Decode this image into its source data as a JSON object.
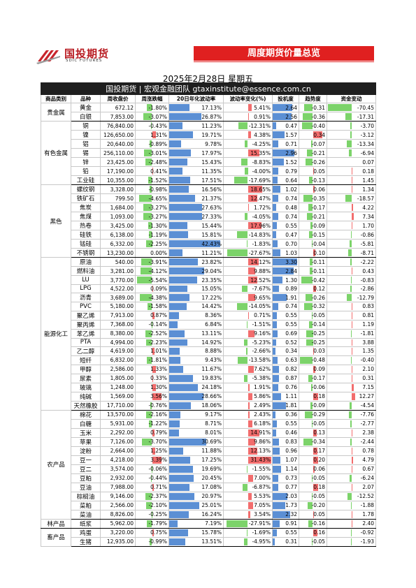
{
  "logo": {
    "cn": "国投期货",
    "en": "SDIC FUTURES"
  },
  "banner": "周度期货价量总览",
  "date": "2025年2月28日 星期五",
  "header_line": "国投期货 | 宏观金融团队 gtaxinstitute@essence.com.cn",
  "columns": [
    "商品类别",
    "品种",
    "周收盘价",
    "周涨跌幅",
    "20日年化波动率",
    "波动率变化(%)",
    "投机度",
    "趋势度",
    "资金变动"
  ],
  "colors": {
    "positive": "#f26d6d",
    "negative": "#7cd36a",
    "volume": "#5b8fd4",
    "brand": "#e02020"
  },
  "groups": [
    {
      "category": "贵金属",
      "rows": [
        [
          "黄金",
          "672.12",
          "-1.80%",
          "17.13%",
          "5.41%",
          "2.64",
          "-0.31",
          "-70.45"
        ],
        [
          "白银",
          "7,853.00",
          "-3.07%",
          "26.87%",
          "0.91%",
          "2.56",
          "-0.36",
          "-17.31"
        ]
      ]
    },
    {
      "category": "有色金属",
      "rows": [
        [
          "铜",
          "76,840.00",
          "-0.43%",
          "11.23%",
          "-12.31%",
          "0.47",
          "-0.40",
          "-3.70"
        ],
        [
          "镍",
          "126,650.00",
          "1.31%",
          "19.71%",
          "4.38%",
          "1.57",
          "0.34",
          "-3.12"
        ],
        [
          "铝",
          "20,640.00",
          "-0.89%",
          "9.78%",
          "-4.25%",
          "0.71",
          "-0.07",
          "-13.34"
        ],
        [
          "锡",
          "256,110.00",
          "-3.01%",
          "17.97%",
          "15.35%",
          "2.96",
          "-0.21",
          "-6.94"
        ],
        [
          "锌",
          "23,425.00",
          "-2.48%",
          "15.43%",
          "-8.83%",
          "1.52",
          "-0.26",
          "0.07"
        ],
        [
          "铅",
          "17,190.00",
          "0.41%",
          "11.35%",
          "-4.00%",
          "0.79",
          "0.05",
          "0.18"
        ],
        [
          "工业硅",
          "10,355.00",
          "-1.52%",
          "17.51%",
          "-17.69%",
          "0.64",
          "-0.13",
          "1.45"
        ]
      ]
    },
    {
      "category": "黑色",
      "rows": [
        [
          "螺纹钢",
          "3,328.00",
          "-0.98%",
          "16.56%",
          "18.65%",
          "1.02",
          "0.06",
          "1.34"
        ],
        [
          "铁矿石",
          "799.50",
          "-4.65%",
          "21.37%",
          "12.47%",
          "0.74",
          "-0.35",
          "-18.57"
        ],
        [
          "焦炭",
          "1,684.00",
          "-3.27%",
          "27.63%",
          "1.72%",
          "0.48",
          "-0.17",
          "4.22"
        ],
        [
          "焦煤",
          "1,093.00",
          "-3.27%",
          "27.33%",
          "-4.05%",
          "0.74",
          "-0.21",
          "7.34"
        ],
        [
          "热卷",
          "3,425.00",
          "-1.30%",
          "15.44%",
          "17.96%",
          "0.55",
          "-0.09",
          "1.70"
        ],
        [
          "硅铁",
          "6,138.00",
          "-1.19%",
          "15.81%",
          "-14.83%",
          "0.47",
          "-0.15",
          "-0.86"
        ],
        [
          "锰硅",
          "6,332.00",
          "-2.25%",
          "42.43%",
          "-1.83%",
          "0.70",
          "-0.04",
          "-5.81"
        ],
        [
          "不锈钢",
          "13,230.00",
          "0.00%",
          "11.21%",
          "-27.67%",
          "1.03",
          "0.10",
          "-8.71"
        ]
      ]
    },
    {
      "category": "能源化工",
      "rows": [
        [
          "原油",
          "540.00",
          "-3.91%",
          "23.82%",
          "14.12%",
          "3.30",
          "-0.11",
          "-2.22"
        ],
        [
          "燃料油",
          "3,281.00",
          "-4.12%",
          "29.04%",
          "9.88%",
          "2.84",
          "-0.11",
          "0.43"
        ],
        [
          "LU",
          "3,770.00",
          "-5.54%",
          "23.35%",
          "12.52%",
          "1.30",
          "-0.42",
          "-0.83"
        ],
        [
          "LPG",
          "4,522.00",
          "0.09%",
          "15.05%",
          "-7.67%",
          "0.89",
          "0.12",
          "-2.86"
        ],
        [
          "沥青",
          "3,689.00",
          "-4.38%",
          "17.22%",
          "9.65%",
          "1.91",
          "-0.26",
          "-12.79"
        ],
        [
          "PVC",
          "5,180.00",
          "-1.58%",
          "14.42%",
          "-14.05%",
          "0.74",
          "-0.32",
          "0.83"
        ],
        [
          "聚乙烯",
          "7,913.00",
          "0.87%",
          "8.36%",
          "0.71%",
          "0.55",
          "-0.05",
          "0.81"
        ],
        [
          "聚丙烯",
          "7,368.00",
          "-0.14%",
          "6.84%",
          "-1.51%",
          "0.55",
          "-0.14",
          "1.19"
        ],
        [
          "苯乙烯",
          "8,380.00",
          "-2.52%",
          "13.11%",
          "9.16%",
          "0.69",
          "-0.25",
          "-1.81"
        ],
        [
          "PTA",
          "4,994.00",
          "-2.23%",
          "14.92%",
          "-5.23%",
          "0.52",
          "-0.25",
          "3.88"
        ],
        [
          "乙二醇",
          "4,619.00",
          "1.01%",
          "8.88%",
          "-2.66%",
          "0.34",
          "0.03",
          "1.35"
        ],
        [
          "短纤",
          "6,832.00",
          "-1.81%",
          "9.43%",
          "-13.58%",
          "0.63",
          "-0.48",
          "-0.40"
        ],
        [
          "甲醇",
          "2,586.00",
          "1.33%",
          "11.67%",
          "7.62%",
          "0.82",
          "0.09",
          "2.10"
        ],
        [
          "尿素",
          "1,805.00",
          "0.33%",
          "19.83%",
          "-5.38%",
          "0.87",
          "-0.17",
          "0.31"
        ],
        [
          "玻璃",
          "1,248.00",
          "1.30%",
          "24.18%",
          "1.91%",
          "0.76",
          "-0.06",
          "7.15"
        ],
        [
          "纯碱",
          "1,569.00",
          "3.56%",
          "28.66%",
          "5.86%",
          "1.11",
          "0.18",
          "12.27"
        ],
        [
          "天然橡胶",
          "17,710.00",
          "-0.76%",
          "18.06%",
          "2.49%",
          "1.81",
          "-0.09",
          "-4.54"
        ]
      ]
    },
    {
      "category": "农产品",
      "rows": [
        [
          "棉花",
          "13,570.00",
          "-2.16%",
          "9.17%",
          "2.43%",
          "0.36",
          "-0.29",
          "-7.76"
        ],
        [
          "白糖",
          "5,931.00",
          "-1.22%",
          "8.71%",
          "6.18%",
          "0.55",
          "-0.05",
          "-2.77"
        ],
        [
          "玉米",
          "2,292.00",
          "0.79%",
          "8.01%",
          "14.91%",
          "0.46",
          "0.13",
          "2.38"
        ],
        [
          "苹果",
          "7,126.00",
          "-3.70%",
          "30.69%",
          "9.86%",
          "0.83",
          "-0.34",
          "-2.44"
        ],
        [
          "淀粉",
          "2,664.00",
          "1.25%",
          "11.88%",
          "12.13%",
          "0.96",
          "0.17",
          "0.78"
        ],
        [
          "豆一",
          "4,218.00",
          "3.39%",
          "17.25%",
          "31.43%",
          "1.07",
          "0.20",
          "4.79"
        ],
        [
          "豆二",
          "3,574.00",
          "-0.06%",
          "19.69%",
          "-1.55%",
          "1.14",
          "0.06",
          "0.67"
        ],
        [
          "豆粕",
          "2,932.00",
          "-0.44%",
          "20.45%",
          "7.00%",
          "0.73",
          "-0.05",
          "-6.24"
        ],
        [
          "豆油",
          "7,988.00",
          "0.71%",
          "17.08%",
          "-6.87%",
          "0.77",
          "0.18",
          "2.07"
        ],
        [
          "棕榈油",
          "9,146.00",
          "-2.37%",
          "20.97%",
          "5.53%",
          "2.03",
          "-0.05",
          "-12.52"
        ],
        [
          "菜粕",
          "2,566.00",
          "-2.10%",
          "25.01%",
          "7.05%",
          "1.73",
          "-0.20",
          "-1.88"
        ],
        [
          "菜油",
          "8,826.00",
          "-0.25%",
          "16.24%",
          "3.54%",
          "2.32",
          "0.05",
          "1.78"
        ]
      ]
    },
    {
      "category": "林产品",
      "rows": [
        [
          "纸浆",
          "5,962.00",
          "-1.79%",
          "7.19%",
          "-27.91%",
          "0.91",
          "-0.16",
          "2.40"
        ]
      ]
    },
    {
      "category": "畜产品",
      "rows": [
        [
          "鸡蛋",
          "3,220.00",
          "0.75%",
          "15.78%",
          "-1.69%",
          "0.55",
          "0.16",
          "-0.92"
        ],
        [
          "生猪",
          "12,935.00",
          "-0.99%",
          "13.51%",
          "-4.95%",
          "0.31",
          "-0.05",
          "-1.93"
        ]
      ]
    }
  ]
}
